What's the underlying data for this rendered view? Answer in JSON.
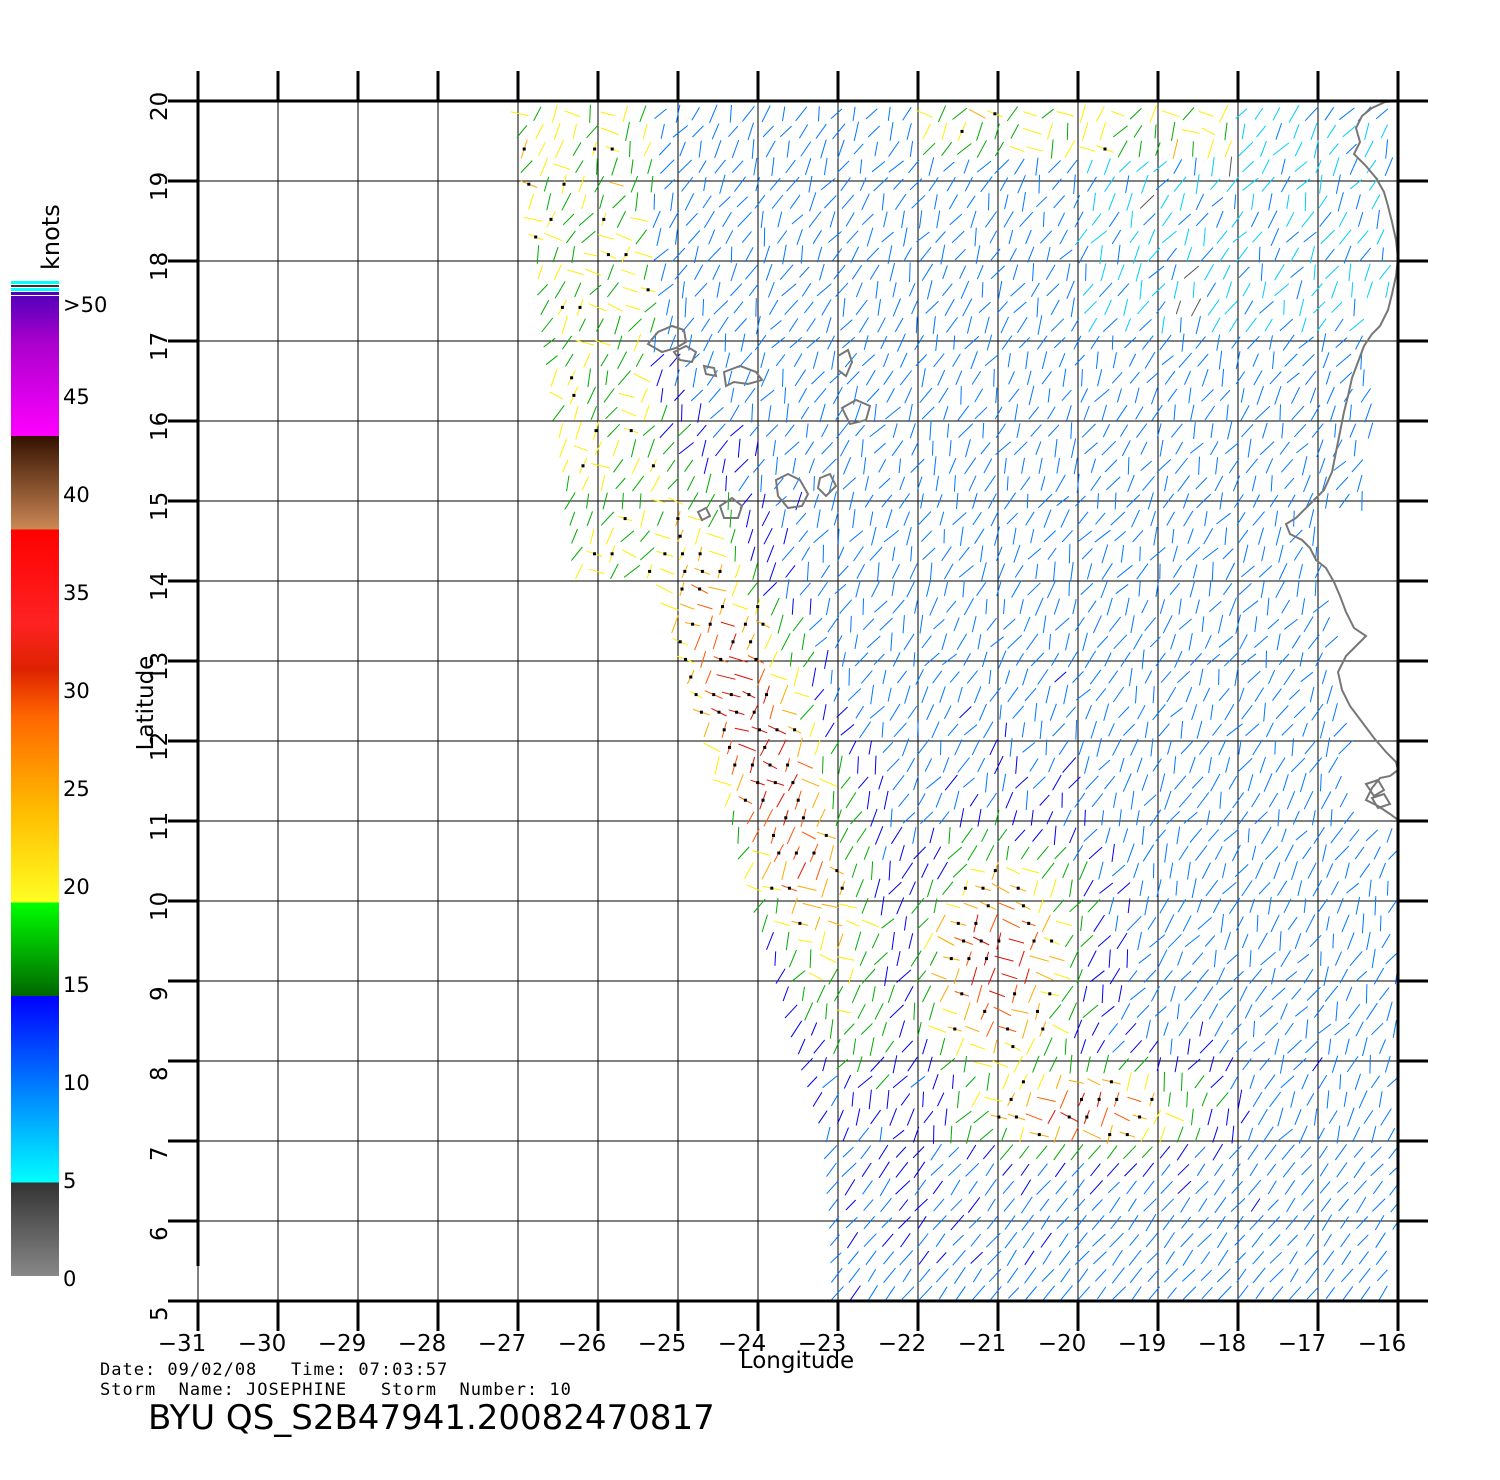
{
  "map": {
    "x_axis_label": "Longitude",
    "y_axis_label": "Latitude",
    "lon_range": [
      -31,
      -16
    ],
    "lat_range": [
      5,
      20
    ],
    "lon_ticks": [
      "−31",
      "−30",
      "−29",
      "−28",
      "−27",
      "−26",
      "−25",
      "−24",
      "−23",
      "−22",
      "−21",
      "−20",
      "−19",
      "−18",
      "−17",
      "−16"
    ],
    "lat_ticks": [
      "5",
      "6",
      "7",
      "8",
      "9",
      "10",
      "11",
      "12",
      "13",
      "14",
      "15",
      "16",
      "17",
      "18",
      "19",
      "20"
    ],
    "content": "QuikSCAT wind vector swath off West Africa (Cape Verde islands, coastline at right)"
  },
  "colorbar": {
    "unit_label": "knots",
    "labels": [
      {
        "text": ">50",
        "value": 50
      },
      {
        "text": "45",
        "value": 45
      },
      {
        "text": "40",
        "value": 40
      },
      {
        "text": "35",
        "value": 35
      },
      {
        "text": "30",
        "value": 30
      },
      {
        "text": "25",
        "value": 25
      },
      {
        "text": "20",
        "value": 20
      },
      {
        "text": "15",
        "value": 15
      },
      {
        "text": "10",
        "value": 10
      },
      {
        "text": "5",
        "value": 5
      },
      {
        "text": "0",
        "value": 0
      }
    ],
    "colors": {
      "c0": "#888888",
      "c5": "#333333",
      "c5b": "#00ffff",
      "c10": "#0066ff",
      "c15": "#0000ff",
      "c15b": "#006600",
      "c20": "#00ff00",
      "c20b": "#ffff00",
      "c25": "#ffbb00",
      "c30": "#dd2200",
      "c35": "#ff0000",
      "c35b": "#cc8855",
      "c40": "#331100",
      "c40b": "#ff00ff",
      "c45": "#aa00cc",
      "c50": "#5500bb"
    }
  },
  "info": {
    "date_line": "Date: 09/02/08   Time: 07:03:57",
    "storm_line": "Storm  Name: JOSEPHINE   Storm  Number: 10",
    "product_id": "BYU  QS_S2B47941.20082470817"
  }
}
